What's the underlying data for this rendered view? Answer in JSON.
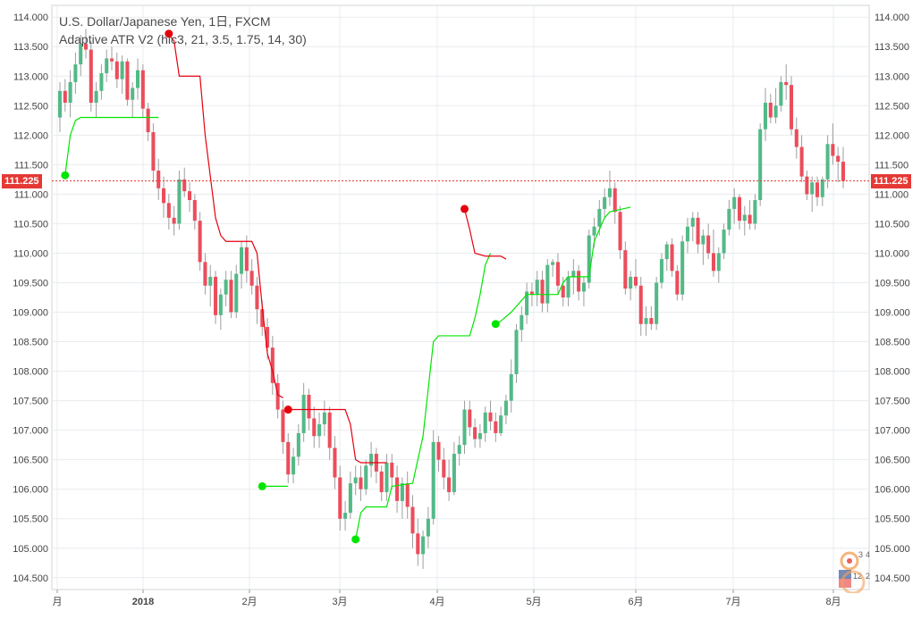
{
  "legend": {
    "line1": "U.S. Dollar/Japanese Yen, 1日, FXCM",
    "line2": "Adaptive ATR V2 (hlc3, 21, 3.5, 1.75, 14, 30)"
  },
  "last_price_label": "111.225",
  "colors": {
    "up": "#53b987",
    "down": "#eb4d5c",
    "wick": "#9e9e9e",
    "trail_up": "#00e600",
    "trail_down": "#e6000e",
    "grid": "#e8ecef",
    "axis_text": "#444444",
    "price_line": "#e53935"
  },
  "chart_data": {
    "type": "candlestick",
    "title": "U.S. Dollar/Japanese Yen, 1日, FXCM",
    "indicator": "Adaptive ATR V2 (hlc3, 21, 3.5, 1.75, 14, 30)",
    "ylim": [
      104.3,
      114.2
    ],
    "y_ticks": [
      "104.500",
      "105.000",
      "105.500",
      "106.000",
      "106.500",
      "107.000",
      "107.500",
      "108.000",
      "108.500",
      "109.000",
      "109.500",
      "110.000",
      "110.500",
      "111.000",
      "111.500",
      "112.000",
      "112.500",
      "113.000",
      "113.500",
      "114.000"
    ],
    "x_ticks": [
      "月",
      "2018",
      "2月",
      "3月",
      "4月",
      "5月",
      "6月",
      "7月",
      "8月"
    ],
    "last_price": 111.225,
    "candles": [
      [
        112.3,
        112.9,
        112.05,
        112.75
      ],
      [
        112.75,
        112.95,
        112.4,
        112.55
      ],
      [
        112.55,
        113.1,
        112.3,
        112.9
      ],
      [
        112.9,
        113.4,
        112.7,
        113.2
      ],
      [
        113.2,
        113.7,
        113.0,
        113.55
      ],
      [
        113.55,
        113.8,
        113.3,
        113.45
      ],
      [
        113.45,
        113.6,
        112.4,
        112.55
      ],
      [
        112.55,
        112.9,
        112.3,
        112.75
      ],
      [
        112.75,
        113.2,
        112.6,
        113.05
      ],
      [
        113.05,
        113.45,
        112.9,
        113.3
      ],
      [
        113.3,
        113.5,
        113.1,
        113.25
      ],
      [
        113.25,
        113.4,
        112.8,
        112.95
      ],
      [
        112.95,
        113.35,
        112.7,
        113.25
      ],
      [
        113.25,
        113.3,
        112.5,
        112.6
      ],
      [
        112.6,
        112.9,
        112.3,
        112.8
      ],
      [
        112.8,
        113.3,
        112.6,
        113.1
      ],
      [
        113.1,
        113.2,
        112.3,
        112.45
      ],
      [
        112.45,
        112.55,
        111.9,
        112.05
      ],
      [
        112.05,
        112.2,
        111.2,
        111.4
      ],
      [
        111.4,
        111.6,
        110.9,
        111.1
      ],
      [
        111.1,
        111.3,
        110.6,
        110.85
      ],
      [
        110.85,
        111.0,
        110.4,
        110.6
      ],
      [
        110.6,
        110.8,
        110.3,
        110.5
      ],
      [
        110.5,
        111.4,
        110.4,
        111.25
      ],
      [
        111.25,
        111.45,
        110.95,
        111.05
      ],
      [
        111.05,
        111.2,
        110.7,
        110.9
      ],
      [
        110.9,
        111.0,
        110.4,
        110.55
      ],
      [
        110.55,
        110.7,
        109.7,
        109.85
      ],
      [
        109.85,
        110.0,
        109.3,
        109.45
      ],
      [
        109.45,
        109.8,
        109.1,
        109.6
      ],
      [
        109.6,
        109.7,
        108.8,
        108.95
      ],
      [
        108.95,
        109.4,
        108.7,
        109.3
      ],
      [
        109.3,
        109.7,
        109.1,
        109.55
      ],
      [
        109.55,
        109.7,
        108.9,
        109.0
      ],
      [
        109.0,
        109.8,
        108.9,
        109.65
      ],
      [
        109.65,
        110.2,
        109.4,
        110.1
      ],
      [
        110.1,
        110.3,
        109.5,
        109.7
      ],
      [
        109.7,
        109.9,
        109.3,
        109.45
      ],
      [
        109.45,
        109.6,
        108.8,
        109.05
      ],
      [
        109.05,
        109.2,
        108.6,
        108.75
      ],
      [
        108.75,
        108.9,
        108.2,
        108.4
      ],
      [
        108.4,
        108.6,
        107.6,
        107.8
      ],
      [
        107.8,
        107.95,
        107.2,
        107.35
      ],
      [
        107.35,
        107.5,
        106.6,
        106.8
      ],
      [
        106.8,
        106.95,
        106.1,
        106.25
      ],
      [
        106.25,
        106.7,
        106.1,
        106.55
      ],
      [
        106.55,
        107.1,
        106.4,
        106.95
      ],
      [
        106.95,
        107.8,
        106.8,
        107.6
      ],
      [
        107.6,
        107.7,
        107.0,
        107.2
      ],
      [
        107.2,
        107.4,
        106.7,
        106.9
      ],
      [
        106.9,
        107.3,
        106.7,
        107.1
      ],
      [
        107.1,
        107.5,
        106.9,
        107.3
      ],
      [
        107.3,
        107.4,
        106.5,
        106.7
      ],
      [
        106.7,
        106.9,
        106.0,
        106.2
      ],
      [
        106.2,
        106.4,
        105.3,
        105.5
      ],
      [
        105.5,
        105.8,
        105.3,
        105.6
      ],
      [
        105.6,
        106.3,
        105.5,
        106.1
      ],
      [
        106.1,
        106.4,
        105.9,
        106.2
      ],
      [
        106.2,
        106.4,
        105.8,
        106.0
      ],
      [
        106.0,
        106.5,
        105.9,
        106.4
      ],
      [
        106.4,
        106.8,
        106.2,
        106.6
      ],
      [
        106.6,
        106.7,
        106.1,
        106.3
      ],
      [
        106.3,
        106.4,
        105.8,
        105.95
      ],
      [
        105.95,
        106.6,
        105.8,
        106.45
      ],
      [
        106.45,
        106.6,
        106.0,
        106.2
      ],
      [
        106.2,
        106.4,
        105.6,
        105.8
      ],
      [
        105.8,
        106.2,
        105.5,
        106.1
      ],
      [
        106.1,
        106.3,
        105.5,
        105.7
      ],
      [
        105.7,
        105.9,
        105.0,
        105.25
      ],
      [
        105.25,
        105.5,
        104.7,
        104.9
      ],
      [
        104.9,
        105.3,
        104.65,
        105.2
      ],
      [
        105.2,
        105.7,
        105.0,
        105.5
      ],
      [
        105.5,
        107.0,
        105.4,
        106.8
      ],
      [
        106.8,
        106.9,
        106.3,
        106.5
      ],
      [
        106.5,
        106.7,
        106.0,
        106.2
      ],
      [
        106.2,
        106.5,
        105.8,
        105.95
      ],
      [
        105.95,
        106.8,
        105.9,
        106.6
      ],
      [
        106.6,
        106.9,
        106.4,
        106.75
      ],
      [
        106.75,
        107.5,
        106.6,
        107.35
      ],
      [
        107.35,
        107.5,
        106.9,
        107.05
      ],
      [
        107.05,
        107.2,
        106.7,
        106.85
      ],
      [
        106.85,
        107.1,
        106.7,
        106.95
      ],
      [
        106.95,
        107.4,
        106.8,
        107.3
      ],
      [
        107.3,
        107.5,
        107.0,
        107.15
      ],
      [
        107.15,
        107.3,
        106.8,
        106.95
      ],
      [
        106.95,
        107.4,
        106.9,
        107.25
      ],
      [
        107.25,
        107.6,
        107.1,
        107.5
      ],
      [
        107.5,
        108.2,
        107.3,
        107.95
      ],
      [
        107.95,
        108.8,
        107.8,
        108.7
      ],
      [
        108.7,
        109.1,
        108.5,
        108.95
      ],
      [
        108.95,
        109.5,
        108.8,
        109.35
      ],
      [
        109.35,
        109.5,
        109.1,
        109.3
      ],
      [
        109.3,
        109.7,
        109.1,
        109.55
      ],
      [
        109.55,
        109.7,
        109.0,
        109.15
      ],
      [
        109.15,
        109.9,
        109.0,
        109.8
      ],
      [
        109.8,
        109.9,
        109.6,
        109.85
      ],
      [
        109.85,
        110.0,
        109.3,
        109.45
      ],
      [
        109.45,
        109.6,
        109.1,
        109.25
      ],
      [
        109.25,
        109.7,
        109.1,
        109.6
      ],
      [
        109.6,
        109.9,
        109.3,
        109.7
      ],
      [
        109.7,
        109.8,
        109.2,
        109.35
      ],
      [
        109.35,
        109.6,
        109.1,
        109.5
      ],
      [
        109.5,
        110.4,
        109.4,
        110.3
      ],
      [
        110.3,
        110.6,
        110.1,
        110.45
      ],
      [
        110.45,
        110.9,
        110.3,
        110.75
      ],
      [
        110.75,
        111.1,
        110.6,
        110.95
      ],
      [
        110.95,
        111.4,
        110.8,
        111.1
      ],
      [
        111.1,
        111.2,
        110.5,
        110.7
      ],
      [
        110.7,
        110.8,
        109.9,
        110.05
      ],
      [
        110.05,
        110.2,
        109.3,
        109.4
      ],
      [
        109.4,
        109.7,
        109.2,
        109.6
      ],
      [
        109.6,
        109.9,
        109.4,
        109.45
      ],
      [
        109.45,
        109.6,
        108.6,
        108.8
      ],
      [
        108.8,
        109.1,
        108.6,
        108.9
      ],
      [
        108.9,
        109.1,
        108.7,
        108.8
      ],
      [
        108.8,
        109.6,
        108.7,
        109.5
      ],
      [
        109.5,
        110.0,
        109.4,
        109.9
      ],
      [
        109.9,
        110.2,
        109.7,
        110.15
      ],
      [
        110.15,
        110.25,
        109.6,
        109.7
      ],
      [
        109.7,
        109.8,
        109.2,
        109.3
      ],
      [
        109.3,
        110.3,
        109.2,
        110.2
      ],
      [
        110.2,
        110.6,
        110.0,
        110.45
      ],
      [
        110.45,
        110.7,
        110.2,
        110.6
      ],
      [
        110.6,
        110.7,
        110.0,
        110.15
      ],
      [
        110.15,
        110.4,
        109.8,
        110.3
      ],
      [
        110.3,
        110.5,
        109.9,
        110.0
      ],
      [
        110.0,
        110.4,
        109.6,
        109.7
      ],
      [
        109.7,
        110.1,
        109.5,
        110.0
      ],
      [
        110.0,
        110.5,
        109.9,
        110.4
      ],
      [
        110.4,
        110.9,
        110.3,
        110.75
      ],
      [
        110.75,
        111.1,
        110.5,
        110.95
      ],
      [
        110.95,
        111.0,
        110.4,
        110.55
      ],
      [
        110.55,
        110.8,
        110.3,
        110.65
      ],
      [
        110.65,
        110.9,
        110.4,
        110.5
      ],
      [
        110.5,
        111.0,
        110.4,
        110.9
      ],
      [
        110.9,
        112.2,
        110.8,
        112.1
      ],
      [
        112.1,
        112.8,
        111.9,
        112.55
      ],
      [
        112.55,
        112.7,
        112.2,
        112.3
      ],
      [
        112.3,
        112.8,
        112.2,
        112.5
      ],
      [
        112.5,
        113.0,
        112.4,
        112.9
      ],
      [
        112.9,
        113.2,
        112.6,
        112.85
      ],
      [
        112.85,
        113.0,
        112.0,
        112.1
      ],
      [
        112.1,
        112.3,
        111.6,
        111.8
      ],
      [
        111.8,
        112.0,
        111.2,
        111.3
      ],
      [
        111.3,
        111.4,
        110.9,
        111.0
      ],
      [
        111.0,
        111.3,
        110.7,
        111.2
      ],
      [
        111.2,
        111.3,
        110.8,
        110.95
      ],
      [
        110.95,
        111.3,
        110.8,
        111.25
      ],
      [
        111.25,
        112.0,
        111.1,
        111.85
      ],
      [
        111.85,
        112.2,
        111.5,
        111.65
      ],
      [
        111.65,
        111.8,
        111.2,
        111.55
      ],
      [
        111.55,
        111.8,
        111.1,
        111.225
      ]
    ],
    "trail": [
      {
        "side": "down",
        "points": [
          [
            21,
            113.7
          ],
          [
            22,
            113.6
          ],
          [
            23,
            113.0
          ],
          [
            27,
            113.0
          ],
          [
            28,
            112.0
          ],
          [
            29,
            111.3
          ],
          [
            30,
            110.6
          ],
          [
            31,
            110.3
          ],
          [
            32,
            110.2
          ],
          [
            37,
            110.2
          ],
          [
            38,
            110.0
          ],
          [
            39,
            109.1
          ],
          [
            40,
            108.3
          ],
          [
            41,
            108.0
          ],
          [
            42,
            107.6
          ],
          [
            43,
            107.55
          ]
        ]
      },
      {
        "side": "up",
        "points": [
          [
            1,
            111.32
          ],
          [
            2,
            112.0
          ],
          [
            3,
            112.25
          ],
          [
            4,
            112.3
          ],
          [
            19,
            112.3
          ]
        ]
      },
      {
        "side": "up",
        "points": [
          [
            39,
            106.05
          ],
          [
            44,
            106.05
          ]
        ]
      },
      {
        "side": "down",
        "points": [
          [
            44,
            107.35
          ],
          [
            55,
            107.35
          ],
          [
            56,
            107.1
          ],
          [
            57,
            106.5
          ],
          [
            58,
            106.45
          ],
          [
            63,
            106.45
          ]
        ]
      },
      {
        "side": "up",
        "points": [
          [
            57,
            105.15
          ],
          [
            58,
            105.6
          ],
          [
            59,
            105.7
          ],
          [
            63,
            105.7
          ],
          [
            64,
            106.05
          ],
          [
            68,
            106.1
          ],
          [
            69,
            106.5
          ],
          [
            70,
            106.9
          ],
          [
            71,
            107.7
          ],
          [
            72,
            108.5
          ],
          [
            73,
            108.6
          ],
          [
            79,
            108.6
          ],
          [
            80,
            108.9
          ],
          [
            81,
            109.3
          ],
          [
            82,
            109.8
          ],
          [
            83,
            110.0
          ]
        ]
      },
      {
        "side": "down",
        "points": [
          [
            78,
            110.75
          ],
          [
            79,
            110.4
          ],
          [
            80,
            110.0
          ],
          [
            82,
            109.95
          ],
          [
            85,
            109.95
          ],
          [
            86,
            109.9
          ]
        ]
      },
      {
        "side": "up",
        "points": [
          [
            84,
            108.8
          ],
          [
            85,
            108.85
          ],
          [
            87,
            109.0
          ],
          [
            89,
            109.2
          ],
          [
            90,
            109.3
          ],
          [
            96,
            109.3
          ],
          [
            97,
            109.5
          ],
          [
            98,
            109.6
          ],
          [
            102,
            109.6
          ],
          [
            103,
            110.2
          ],
          [
            104,
            110.4
          ],
          [
            105,
            110.6
          ],
          [
            106,
            110.7
          ],
          [
            110,
            110.78
          ]
        ]
      }
    ],
    "markers": [
      {
        "side": "down",
        "index": 21,
        "price": 113.72
      },
      {
        "side": "up",
        "index": 1,
        "price": 111.32
      },
      {
        "side": "up",
        "index": 39,
        "price": 106.05
      },
      {
        "side": "down",
        "index": 44,
        "price": 107.35
      },
      {
        "side": "up",
        "index": 57,
        "price": 105.15
      },
      {
        "side": "down",
        "index": 78,
        "price": 110.75
      },
      {
        "side": "up",
        "index": 84,
        "price": 108.8
      }
    ]
  }
}
